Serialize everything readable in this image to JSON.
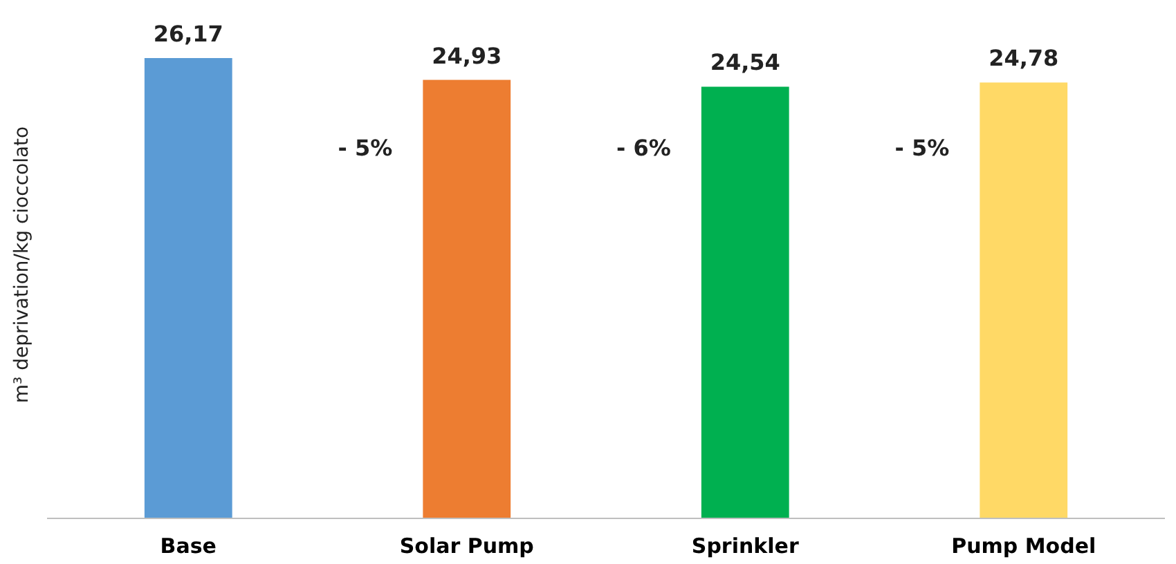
{
  "chart_data": {
    "type": "bar",
    "ylabel": "m³ deprivation/kg cioccolato",
    "categories": [
      "Base",
      "Solar Pump",
      "Sprinkler",
      "Pump Model"
    ],
    "values": [
      26.17,
      24.93,
      24.54,
      24.78
    ],
    "value_labels": [
      "26,17",
      "24,93",
      "24,54",
      "24,78"
    ],
    "colors": [
      "#5b9bd5",
      "#ed7d31",
      "#00b050",
      "#ffd966"
    ],
    "tick_labels": "x",
    "annotations": [
      "- 5%",
      "- 6%",
      "- 5%"
    ]
  }
}
